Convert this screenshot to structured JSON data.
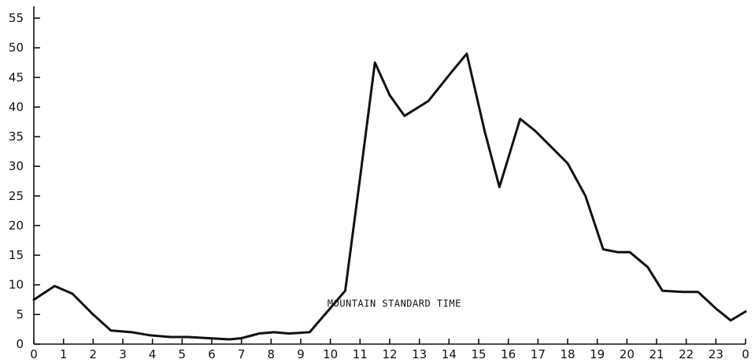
{
  "chart_data": {
    "type": "line",
    "annotation": "MOUNTAIN STANDARD TIME",
    "x_ticks": [
      "0",
      "1",
      "2",
      "3",
      "4",
      "5",
      "6",
      "7",
      "8",
      "9",
      "10",
      "11",
      "12",
      "13",
      "14",
      "15",
      "16",
      "17",
      "18",
      "19",
      "20",
      "21",
      "22",
      "23",
      "0"
    ],
    "y_ticks": [
      "0",
      "5",
      "10",
      "15",
      "20",
      "25",
      "30",
      "35",
      "40",
      "45",
      "50",
      "55"
    ],
    "xlim": [
      0,
      24
    ],
    "ylim": [
      0,
      57
    ],
    "grid": false,
    "x": [
      0,
      0.7,
      1.3,
      2.0,
      2.6,
      3.3,
      3.9,
      4.6,
      5.2,
      5.9,
      6.6,
      7.0,
      7.6,
      8.1,
      8.6,
      9.3,
      9.9,
      10.5,
      11.0,
      11.5,
      12.0,
      12.5,
      13.3,
      14.1,
      14.6,
      15.2,
      15.7,
      16.4,
      16.9,
      17.5,
      18.0,
      18.6,
      19.2,
      19.7,
      20.1,
      20.7,
      21.2,
      21.9,
      22.4,
      23.0,
      23.5,
      24.0
    ],
    "y": [
      7.5,
      9.8,
      8.5,
      5.0,
      2.3,
      2.0,
      1.5,
      1.2,
      1.2,
      1.0,
      0.8,
      1.0,
      1.8,
      2.0,
      1.8,
      2.0,
      5.5,
      9.0,
      28.0,
      47.5,
      42.0,
      38.5,
      41.0,
      46.0,
      49.0,
      36.0,
      26.5,
      38.0,
      36.0,
      33.0,
      30.5,
      25.0,
      16.0,
      15.5,
      15.5,
      13.0,
      9.0,
      8.8,
      8.8,
      6.0,
      4.0,
      5.5
    ]
  }
}
